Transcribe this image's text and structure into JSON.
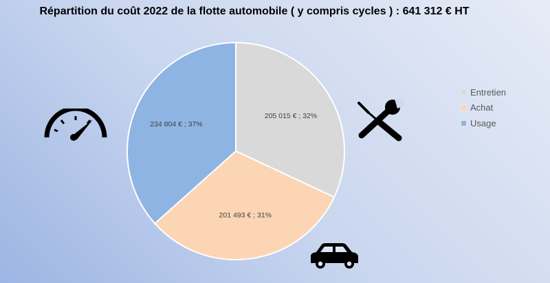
{
  "chart_data": {
    "type": "pie",
    "title": "Répartition du coût 2022 de la flotte automobile ( y compris cycles ) : 641 312 € HT",
    "categories": [
      "Entretien",
      "Achat",
      "Usage"
    ],
    "values": [
      205015,
      201493,
      234804
    ],
    "data_labels": [
      "205 015 € ; 32%",
      "201 493 € ; 31%",
      "234 804 € ; 37%"
    ],
    "colors": [
      "#d9d9d9",
      "#fcd5b4",
      "#8eb4e3"
    ],
    "start_angle_deg": 0,
    "direction": "clockwise",
    "legend_position": "right"
  },
  "icons": {
    "speedometer": "speedometer-icon",
    "tools": "wrench-screwdriver-icon",
    "car": "car-icon"
  }
}
